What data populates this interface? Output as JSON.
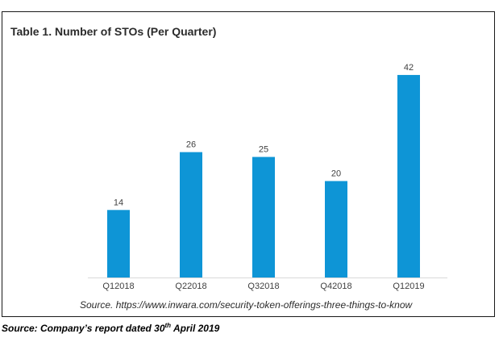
{
  "chart_data": {
    "type": "bar",
    "title": "Table 1. Number of STOs (Per Quarter)",
    "categories": [
      "Q12018",
      "Q22018",
      "Q32018",
      "Q42018",
      "Q12019"
    ],
    "values": [
      14,
      26,
      25,
      20,
      42
    ],
    "xlabel": "",
    "ylabel": "",
    "ylim": [
      0,
      45
    ],
    "grid": false,
    "legend": "none",
    "data_labels": true,
    "bar_color": "#0e95d6",
    "axis_color": "#d9d9d9"
  },
  "source_note": "Source. https://www.inwara.com/security-token-offerings-three-things-to-know",
  "company_source": {
    "prefix": "Source: Company’s report dated 30",
    "superscript": "th",
    "suffix": " April 2019"
  }
}
